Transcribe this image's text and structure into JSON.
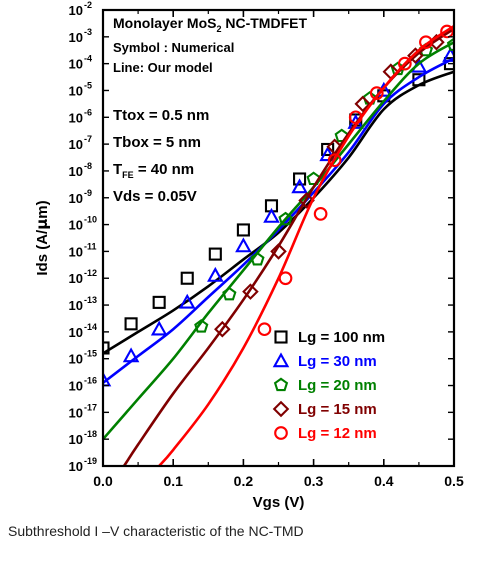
{
  "chart_data": {
    "type": "line",
    "title_main": "Monolayer MoS",
    "title_sub": "2",
    "title_rest": " NC-TMDFET",
    "symbol_note": "Symbol : Numerical",
    "line_note": "Line: Our model",
    "params": [
      {
        "text": "Ttox = 0.5 nm"
      },
      {
        "text": "Tbox = 5 nm"
      },
      {
        "main": "T",
        "sub": "FE",
        "rest": " = 40 nm"
      },
      {
        "text": "Vds = 0.05V"
      }
    ],
    "xlabel": "Vgs (V)",
    "ylabel_pre": "Ids (A/",
    "ylabel_mu": "μ",
    "ylabel_post": "m)",
    "xlim": [
      0.0,
      0.5
    ],
    "ylim_exp": [
      -19,
      -2
    ],
    "x_ticks": [
      "0.0",
      "0.1",
      "0.2",
      "0.3",
      "0.4",
      "0.5"
    ],
    "x_tick_values": [
      0.0,
      0.1,
      0.2,
      0.3,
      0.4,
      0.5
    ],
    "y_tick_exponents": [
      -19,
      -18,
      -17,
      -16,
      -15,
      -14,
      -13,
      -12,
      -11,
      -10,
      -9,
      -8,
      -7,
      -6,
      -5,
      -4,
      -3,
      -2
    ],
    "y_tick_base": "10",
    "y_scale": "log",
    "legend_position": "bottom-right",
    "series": [
      {
        "name": "Lg = 100 nm",
        "color": "#000000",
        "marker": "square",
        "line_exp": [
          [
            0.0,
            -14.8
          ],
          [
            0.05,
            -14.0
          ],
          [
            0.1,
            -13.2
          ],
          [
            0.15,
            -12.3
          ],
          [
            0.2,
            -11.3
          ],
          [
            0.25,
            -10.3
          ],
          [
            0.3,
            -9.0
          ],
          [
            0.35,
            -7.5
          ],
          [
            0.4,
            -5.7
          ],
          [
            0.45,
            -4.8
          ],
          [
            0.5,
            -4.3
          ]
        ],
        "points_exp": [
          [
            0.0,
            -14.6
          ],
          [
            0.04,
            -13.7
          ],
          [
            0.08,
            -12.9
          ],
          [
            0.12,
            -12.0
          ],
          [
            0.16,
            -11.1
          ],
          [
            0.2,
            -10.2
          ],
          [
            0.24,
            -9.3
          ],
          [
            0.28,
            -8.3
          ],
          [
            0.32,
            -7.2
          ],
          [
            0.36,
            -6.1
          ],
          [
            0.4,
            -5.2
          ],
          [
            0.45,
            -4.6
          ],
          [
            0.495,
            -4.0
          ]
        ]
      },
      {
        "name": "Lg = 30 nm",
        "color": "#0000ff",
        "marker": "triangle",
        "line_exp": [
          [
            0.0,
            -15.9
          ],
          [
            0.05,
            -14.9
          ],
          [
            0.1,
            -13.9
          ],
          [
            0.15,
            -12.7
          ],
          [
            0.2,
            -11.5
          ],
          [
            0.25,
            -10.2
          ],
          [
            0.3,
            -8.8
          ],
          [
            0.35,
            -7.3
          ],
          [
            0.4,
            -5.5
          ],
          [
            0.45,
            -4.5
          ],
          [
            0.5,
            -3.8
          ]
        ],
        "points_exp": [
          [
            0.0,
            -15.8
          ],
          [
            0.04,
            -14.9
          ],
          [
            0.08,
            -13.9
          ],
          [
            0.12,
            -12.9
          ],
          [
            0.16,
            -11.9
          ],
          [
            0.2,
            -10.8
          ],
          [
            0.24,
            -9.7
          ],
          [
            0.28,
            -8.6
          ],
          [
            0.32,
            -7.4
          ],
          [
            0.36,
            -6.2
          ],
          [
            0.4,
            -5.0
          ],
          [
            0.45,
            -4.1
          ],
          [
            0.495,
            -3.7
          ]
        ]
      },
      {
        "name": "Lg = 20 nm",
        "color": "#008000",
        "marker": "pentagon",
        "line_exp": [
          [
            0.0,
            -18.0
          ],
          [
            0.05,
            -16.5
          ],
          [
            0.1,
            -15.0
          ],
          [
            0.15,
            -13.3
          ],
          [
            0.2,
            -11.7
          ],
          [
            0.25,
            -10.1
          ],
          [
            0.3,
            -8.6
          ],
          [
            0.35,
            -7.0
          ],
          [
            0.4,
            -5.4
          ],
          [
            0.45,
            -4.0
          ],
          [
            0.5,
            -3.2
          ]
        ],
        "points_exp": [
          [
            0.14,
            -13.8
          ],
          [
            0.18,
            -12.6
          ],
          [
            0.22,
            -11.3
          ],
          [
            0.26,
            -9.8
          ],
          [
            0.3,
            -8.3
          ],
          [
            0.34,
            -6.7
          ],
          [
            0.38,
            -5.3
          ],
          [
            0.42,
            -4.2
          ],
          [
            0.46,
            -3.5
          ],
          [
            0.5,
            -3.3
          ]
        ]
      },
      {
        "name": "Lg = 15 nm",
        "color": "#800000",
        "marker": "diamond",
        "line_exp": [
          [
            0.03,
            -19.0
          ],
          [
            0.05,
            -18.2
          ],
          [
            0.1,
            -16.3
          ],
          [
            0.15,
            -14.6
          ],
          [
            0.2,
            -12.8
          ],
          [
            0.25,
            -10.8
          ],
          [
            0.3,
            -8.6
          ],
          [
            0.35,
            -6.6
          ],
          [
            0.4,
            -4.9
          ],
          [
            0.45,
            -3.6
          ],
          [
            0.5,
            -2.7
          ]
        ],
        "points_exp": [
          [
            0.17,
            -13.9
          ],
          [
            0.21,
            -12.5
          ],
          [
            0.25,
            -11.0
          ],
          [
            0.29,
            -9.1
          ],
          [
            0.33,
            -7.1
          ],
          [
            0.37,
            -5.5
          ],
          [
            0.41,
            -4.3
          ],
          [
            0.445,
            -3.7
          ],
          [
            0.475,
            -3.2
          ]
        ]
      },
      {
        "name": "Lg = 12 nm",
        "color": "#ff0000",
        "marker": "circle",
        "line_exp": [
          [
            0.08,
            -19.0
          ],
          [
            0.1,
            -18.4
          ],
          [
            0.15,
            -16.7
          ],
          [
            0.2,
            -14.6
          ],
          [
            0.25,
            -12.0
          ],
          [
            0.3,
            -9.0
          ],
          [
            0.35,
            -6.7
          ],
          [
            0.4,
            -4.9
          ],
          [
            0.45,
            -3.5
          ],
          [
            0.5,
            -2.6
          ]
        ],
        "points_exp": [
          [
            0.23,
            -13.9
          ],
          [
            0.26,
            -12.0
          ],
          [
            0.31,
            -9.6
          ],
          [
            0.33,
            -7.6
          ],
          [
            0.36,
            -6.0
          ],
          [
            0.39,
            -5.1
          ],
          [
            0.43,
            -4.0
          ],
          [
            0.46,
            -3.2
          ],
          [
            0.49,
            -2.8
          ]
        ]
      }
    ]
  },
  "caption": {
    "text": "Subthreshold I   –V    characteristic of the NC-TMD"
  }
}
